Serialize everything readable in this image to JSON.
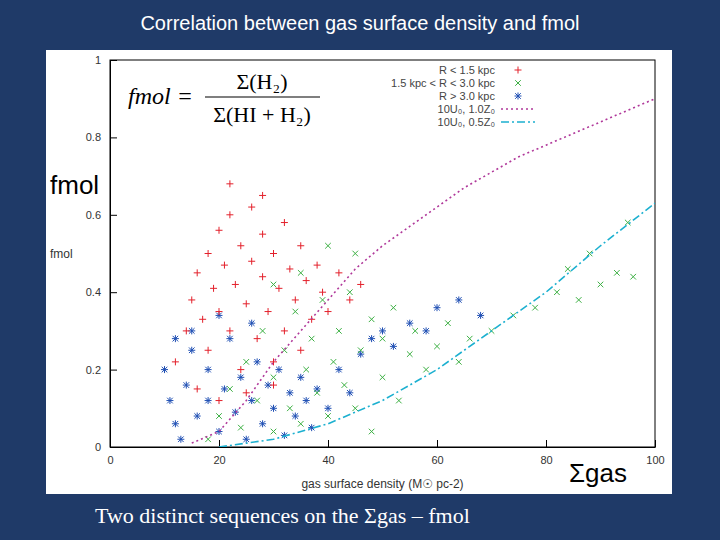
{
  "chart_data": {
    "type": "scatter",
    "title": "Correlation between gas surface density and fmol",
    "x_label": "gas surface density (M☉ pc-2)",
    "y_label": "fmol",
    "caption": "Two distinct sequences on the Σgas – fmol",
    "annotations": [
      "fmol",
      "Σgas"
    ],
    "formula": {
      "lhs": "fmol =",
      "numerator": "Σ(H₂)",
      "denominator": "Σ(HI + H₂)"
    },
    "xlim": [
      0,
      100
    ],
    "ylim": [
      0,
      1
    ],
    "xticks": [
      0,
      20,
      40,
      60,
      80,
      100
    ],
    "yticks": [
      0,
      0.2,
      0.4,
      0.6,
      0.8,
      1
    ],
    "grid": false,
    "legend": "top",
    "series": [
      {
        "name": "R < 1.5 kpc",
        "type": "scatter",
        "marker": "plus",
        "color": "#e3202b",
        "x": [
          12,
          14,
          15,
          16,
          17,
          18,
          18,
          19,
          20,
          20,
          21,
          22,
          22,
          23,
          24,
          24,
          25,
          26,
          26,
          27,
          28,
          28,
          29,
          30,
          30,
          31,
          32,
          32,
          33,
          34,
          35,
          35,
          36,
          37,
          38,
          39,
          40,
          42,
          44,
          46,
          16,
          20,
          25,
          30,
          22,
          28
        ],
        "values": [
          0.22,
          0.3,
          0.38,
          0.45,
          0.33,
          0.5,
          0.25,
          0.41,
          0.56,
          0.35,
          0.47,
          0.3,
          0.6,
          0.42,
          0.52,
          0.2,
          0.37,
          0.48,
          0.62,
          0.28,
          0.44,
          0.55,
          0.35,
          0.5,
          0.22,
          0.41,
          0.58,
          0.3,
          0.46,
          0.38,
          0.52,
          0.25,
          0.43,
          0.33,
          0.47,
          0.4,
          0.35,
          0.45,
          0.38,
          0.42,
          0.15,
          0.12,
          0.14,
          0.16,
          0.68,
          0.65
        ]
      },
      {
        "name": "1.5 kpc < R < 3.0 kpc",
        "type": "scatter",
        "marker": "cross",
        "color": "#3cb043",
        "x": [
          18,
          20,
          22,
          24,
          25,
          27,
          28,
          30,
          30,
          32,
          33,
          34,
          35,
          36,
          37,
          38,
          39,
          40,
          41,
          42,
          43,
          44,
          45,
          46,
          48,
          48,
          50,
          50,
          52,
          53,
          55,
          56,
          58,
          60,
          62,
          64,
          66,
          70,
          74,
          78,
          82,
          86,
          90,
          93,
          96,
          35,
          30,
          45,
          40,
          95,
          88,
          84
        ],
        "values": [
          0.02,
          0.08,
          0.15,
          0.05,
          0.22,
          0.12,
          0.3,
          0.04,
          0.18,
          0.25,
          0.1,
          0.35,
          0.06,
          0.2,
          0.28,
          0.14,
          0.38,
          0.08,
          0.22,
          0.3,
          0.16,
          0.4,
          0.1,
          0.25,
          0.33,
          0.04,
          0.18,
          0.28,
          0.36,
          0.12,
          0.24,
          0.3,
          0.2,
          0.26,
          0.32,
          0.22,
          0.28,
          0.3,
          0.34,
          0.36,
          0.4,
          0.38,
          0.42,
          0.45,
          0.44,
          0.45,
          0.42,
          0.5,
          0.52,
          0.58,
          0.5,
          0.46
        ]
      },
      {
        "name": "R > 3.0 kpc",
        "type": "scatter",
        "marker": "asterisk",
        "color": "#1f4fb4",
        "x": [
          10,
          11,
          12,
          13,
          14,
          15,
          16,
          18,
          18,
          20,
          21,
          22,
          23,
          24,
          25,
          26,
          27,
          28,
          29,
          30,
          31,
          32,
          33,
          34,
          35,
          36,
          37,
          38,
          40,
          42,
          44,
          46,
          48,
          50,
          52,
          55,
          58,
          60,
          64,
          68,
          15,
          20,
          12,
          26
        ],
        "values": [
          0.2,
          0.12,
          0.06,
          0.02,
          0.16,
          0.25,
          0.08,
          0.12,
          0.2,
          0.04,
          0.15,
          0.28,
          0.09,
          0.18,
          0.02,
          0.12,
          0.22,
          0.06,
          0.16,
          0.1,
          0.2,
          0.03,
          0.14,
          0.08,
          0.18,
          0.12,
          0.05,
          0.15,
          0.1,
          0.2,
          0.14,
          0.24,
          0.28,
          0.3,
          0.26,
          0.32,
          0.3,
          0.36,
          0.38,
          0.34,
          0.3,
          0.34,
          0.28,
          0.32
        ]
      },
      {
        "name": "10U₀, 1.0Z₀",
        "type": "line",
        "line_style": "dotted",
        "color": "#b0389a",
        "x": [
          15,
          20,
          25,
          30,
          35,
          40,
          45,
          50,
          55,
          60,
          65,
          70,
          75,
          80,
          85,
          90,
          95,
          100
        ],
        "values": [
          0.01,
          0.04,
          0.12,
          0.22,
          0.3,
          0.38,
          0.46,
          0.52,
          0.57,
          0.62,
          0.67,
          0.71,
          0.75,
          0.78,
          0.81,
          0.84,
          0.87,
          0.9
        ]
      },
      {
        "name": "10U₀, 0.5Z₀",
        "type": "line",
        "line_style": "dashdot",
        "color": "#1cb0d0",
        "x": [
          20,
          30,
          40,
          50,
          60,
          70,
          80,
          90,
          100
        ],
        "values": [
          0.0,
          0.02,
          0.06,
          0.12,
          0.2,
          0.3,
          0.4,
          0.52,
          0.63
        ]
      }
    ]
  }
}
